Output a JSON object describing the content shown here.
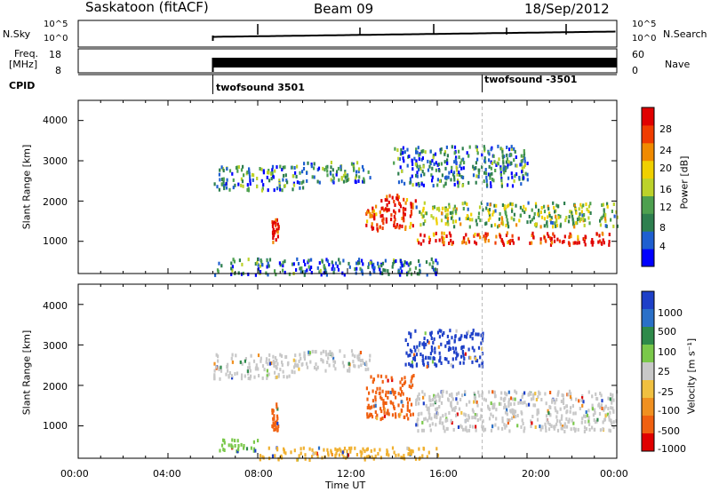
{
  "header": {
    "station": "Saskatoon (fitACF)",
    "beam": "Beam 09",
    "date": "18/Sep/2012"
  },
  "top_panels": {
    "nsky_label": "N.Sky",
    "nsky_ticks": [
      "10^5",
      "10^0"
    ],
    "nsearch_label": "N.Search",
    "nsearch_ticks": [
      "10^5",
      "10^0"
    ],
    "freq_label": "Freq.",
    "freq_unit": "[MHz]",
    "freq_ticks": [
      "18",
      "8"
    ],
    "nave_label": "Nave",
    "nave_ticks": [
      "60",
      "0"
    ],
    "cpid_label": "CPID",
    "cpid_segments": [
      {
        "label": "twofsound 3501",
        "start_hour": 6.0
      },
      {
        "label": "twofsound -3501",
        "start_hour": 18.0
      }
    ]
  },
  "chart_data": [
    {
      "type": "heatmap",
      "name": "power-panel",
      "ylabel": "Slant Range [km]",
      "xlabel": "",
      "xlim": [
        0,
        24
      ],
      "ylim": [
        200,
        4500
      ],
      "y_ticks": [
        "1000",
        "2000",
        "3000",
        "4000"
      ],
      "colorbar": {
        "label": "Power [dB]",
        "ticks": [
          "4",
          "8",
          "12",
          "16",
          "20",
          "24",
          "28"
        ],
        "range": [
          0,
          30
        ],
        "colors": [
          "#0000ff",
          "#1e5fd0",
          "#2e7f4f",
          "#4ea04f",
          "#bcd22a",
          "#f0d000",
          "#f08a00",
          "#f03c00",
          "#e00000"
        ]
      },
      "data_start_hour": 6.0,
      "regions": [
        {
          "t0": 6.0,
          "t1": 10.0,
          "r0": 2300,
          "r1": 2900,
          "level": 0.3
        },
        {
          "t0": 10.0,
          "t1": 13.0,
          "r0": 2500,
          "r1": 3000,
          "level": 0.28
        },
        {
          "t0": 12.8,
          "t1": 15.0,
          "r0": 1300,
          "r1": 2200,
          "level": 0.85
        },
        {
          "t0": 15.0,
          "t1": 24.0,
          "r0": 950,
          "r1": 1250,
          "level": 0.88
        },
        {
          "t0": 15.0,
          "t1": 24.0,
          "r0": 1400,
          "r1": 2000,
          "level": 0.45
        },
        {
          "t0": 14.0,
          "t1": 20.0,
          "r0": 2400,
          "r1": 3400,
          "level": 0.25
        },
        {
          "t0": 6.0,
          "t1": 16.0,
          "r0": 200,
          "r1": 600,
          "level": 0.22
        },
        {
          "t0": 8.6,
          "t1": 8.9,
          "r0": 1000,
          "r1": 1600,
          "level": 0.9
        }
      ]
    },
    {
      "type": "heatmap",
      "name": "velocity-panel",
      "ylabel": "Slant Range [km]",
      "xlabel": "Time UT",
      "xlim": [
        0,
        24
      ],
      "ylim": [
        200,
        4500
      ],
      "x_ticks": [
        "00:00",
        "04:00",
        "08:00",
        "12:00",
        "16:00",
        "20:00",
        "00:00"
      ],
      "y_ticks": [
        "1000",
        "2000",
        "3000",
        "4000"
      ],
      "colorbar": {
        "label": "Velocity [m s⁻¹]",
        "ticks": [
          "1000",
          "500",
          "100",
          "25",
          "-25",
          "-100",
          "-500",
          "-1000"
        ],
        "colors": [
          "#1e40c8",
          "#2a70c8",
          "#2e8a4a",
          "#7ac84a",
          "#c8c8c8",
          "#f0c040",
          "#f09020",
          "#f06010",
          "#e00000"
        ]
      },
      "data_start_hour": 6.0,
      "regions": [
        {
          "t0": 6.0,
          "t1": 10.0,
          "r0": 2200,
          "r1": 2800,
          "level": "grey"
        },
        {
          "t0": 10.0,
          "t1": 13.0,
          "r0": 2400,
          "r1": 2900,
          "level": "grey"
        },
        {
          "t0": 12.8,
          "t1": 15.0,
          "r0": 1200,
          "r1": 2300,
          "level": "orange"
        },
        {
          "t0": 15.0,
          "t1": 24.0,
          "r0": 900,
          "r1": 1900,
          "level": "grey"
        },
        {
          "t0": 14.5,
          "t1": 18.0,
          "r0": 2500,
          "r1": 3400,
          "level": "blue"
        },
        {
          "t0": 6.0,
          "t1": 8.0,
          "r0": 400,
          "r1": 700,
          "level": "green"
        },
        {
          "t0": 8.0,
          "t1": 16.0,
          "r0": 200,
          "r1": 500,
          "level": "lightorange"
        },
        {
          "t0": 8.6,
          "t1": 8.9,
          "r0": 900,
          "r1": 1600,
          "level": "orange"
        }
      ]
    }
  ]
}
